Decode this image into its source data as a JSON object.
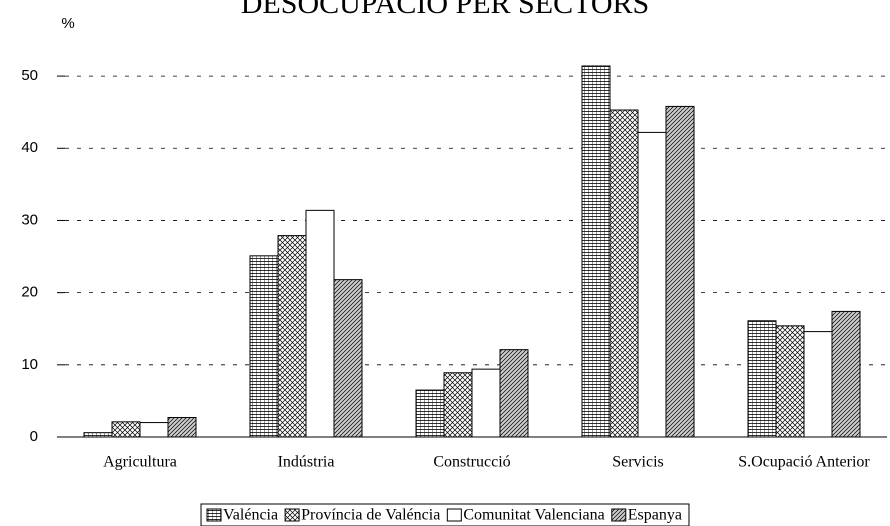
{
  "chart_data": {
    "type": "bar",
    "title": "DESOCUPACIÓ PER SECTORS",
    "y_label": "%",
    "categories": [
      "Agricultura",
      "Indústria",
      "Construcció",
      "Servicis",
      "S.Ocupació Anterior"
    ],
    "series": [
      {
        "name": "Valéncia",
        "color": "#000000",
        "pattern": "horizontal",
        "values": [
          0.6,
          25.1,
          6.5,
          51.4,
          16.1
        ]
      },
      {
        "name": "Província de Valéncia",
        "color": "#000000",
        "pattern": "crosshatch",
        "values": [
          2.1,
          27.9,
          8.9,
          45.3,
          15.4
        ]
      },
      {
        "name": "Comunitat Valenciana",
        "color": "#000000",
        "pattern": "none",
        "values": [
          2.0,
          31.4,
          9.4,
          42.2,
          14.6
        ]
      },
      {
        "name": "Espanya",
        "color": "#000000",
        "pattern": "diagonal",
        "values": [
          2.7,
          21.8,
          12.1,
          45.8,
          17.4
        ]
      }
    ],
    "ylim": [
      0,
      55
    ],
    "yticks": [
      0,
      10,
      20,
      30,
      40,
      50
    ],
    "grid": true,
    "legend": "bottom"
  }
}
